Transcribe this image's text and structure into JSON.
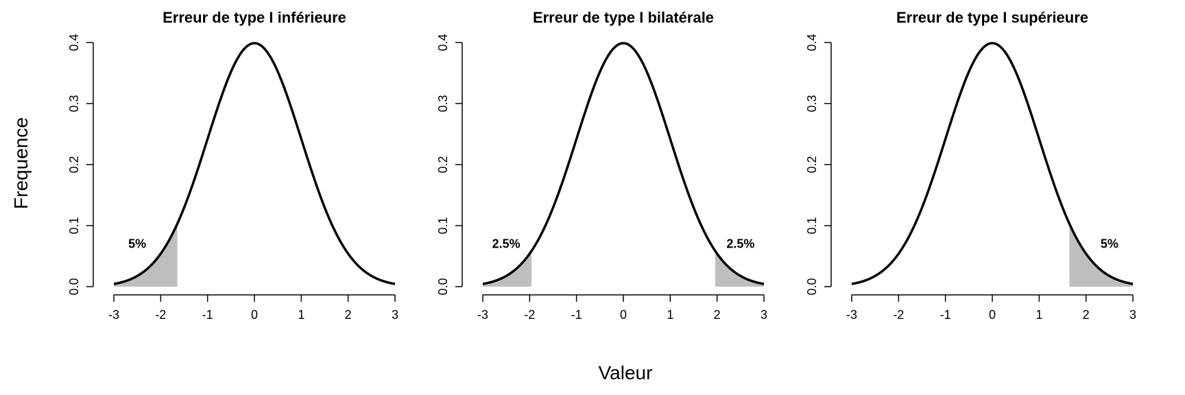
{
  "figure": {
    "xlabel": "Valeur",
    "ylabel": "Frequence"
  },
  "colors": {
    "curve": "#000000",
    "shade": "#bebebe",
    "axis": "#000000"
  },
  "chart_data": [
    {
      "type": "area",
      "title": "Erreur de type I inférieure",
      "distribution": "normal",
      "mean": 0,
      "sd": 1,
      "xlim": [
        -3,
        3
      ],
      "ylim": [
        0,
        0.4
      ],
      "x_ticks": [
        -3,
        -2,
        -1,
        0,
        1,
        2,
        3
      ],
      "x_tick_labels": [
        "-3",
        "-2",
        "-1",
        "0",
        "1",
        "2",
        "3"
      ],
      "y_ticks": [
        0.0,
        0.1,
        0.2,
        0.3,
        0.4
      ],
      "y_tick_labels": [
        "0.0",
        "0.1",
        "0.2",
        "0.3",
        "0.4"
      ],
      "shaded_regions": [
        {
          "from": -3,
          "to": -1.645
        }
      ],
      "annotations": [
        {
          "text": "5%",
          "x": -2.5,
          "y": 0.07
        }
      ]
    },
    {
      "type": "area",
      "title": "Erreur de type I bilatérale",
      "distribution": "normal",
      "mean": 0,
      "sd": 1,
      "xlim": [
        -3,
        3
      ],
      "ylim": [
        0,
        0.4
      ],
      "x_ticks": [
        -3,
        -2,
        -1,
        0,
        1,
        2,
        3
      ],
      "x_tick_labels": [
        "-3",
        "-2",
        "-1",
        "0",
        "1",
        "2",
        "3"
      ],
      "y_ticks": [
        0.0,
        0.1,
        0.2,
        0.3,
        0.4
      ],
      "y_tick_labels": [
        "0.0",
        "0.1",
        "0.2",
        "0.3",
        "0.4"
      ],
      "shaded_regions": [
        {
          "from": -3,
          "to": -1.96
        },
        {
          "from": 1.96,
          "to": 3
        }
      ],
      "annotations": [
        {
          "text": "2.5%",
          "x": -2.5,
          "y": 0.07
        },
        {
          "text": "2.5%",
          "x": 2.5,
          "y": 0.07
        }
      ]
    },
    {
      "type": "area",
      "title": "Erreur de type I supérieure",
      "distribution": "normal",
      "mean": 0,
      "sd": 1,
      "xlim": [
        -3,
        3
      ],
      "ylim": [
        0,
        0.4
      ],
      "x_ticks": [
        -3,
        -2,
        -1,
        0,
        1,
        2,
        3
      ],
      "x_tick_labels": [
        "-3",
        "-2",
        "-1",
        "0",
        "1",
        "2",
        "3"
      ],
      "y_ticks": [
        0.0,
        0.1,
        0.2,
        0.3,
        0.4
      ],
      "y_tick_labels": [
        "0.0",
        "0.1",
        "0.2",
        "0.3",
        "0.4"
      ],
      "shaded_regions": [
        {
          "from": 1.645,
          "to": 3
        }
      ],
      "annotations": [
        {
          "text": "5%",
          "x": 2.5,
          "y": 0.07
        }
      ]
    }
  ]
}
